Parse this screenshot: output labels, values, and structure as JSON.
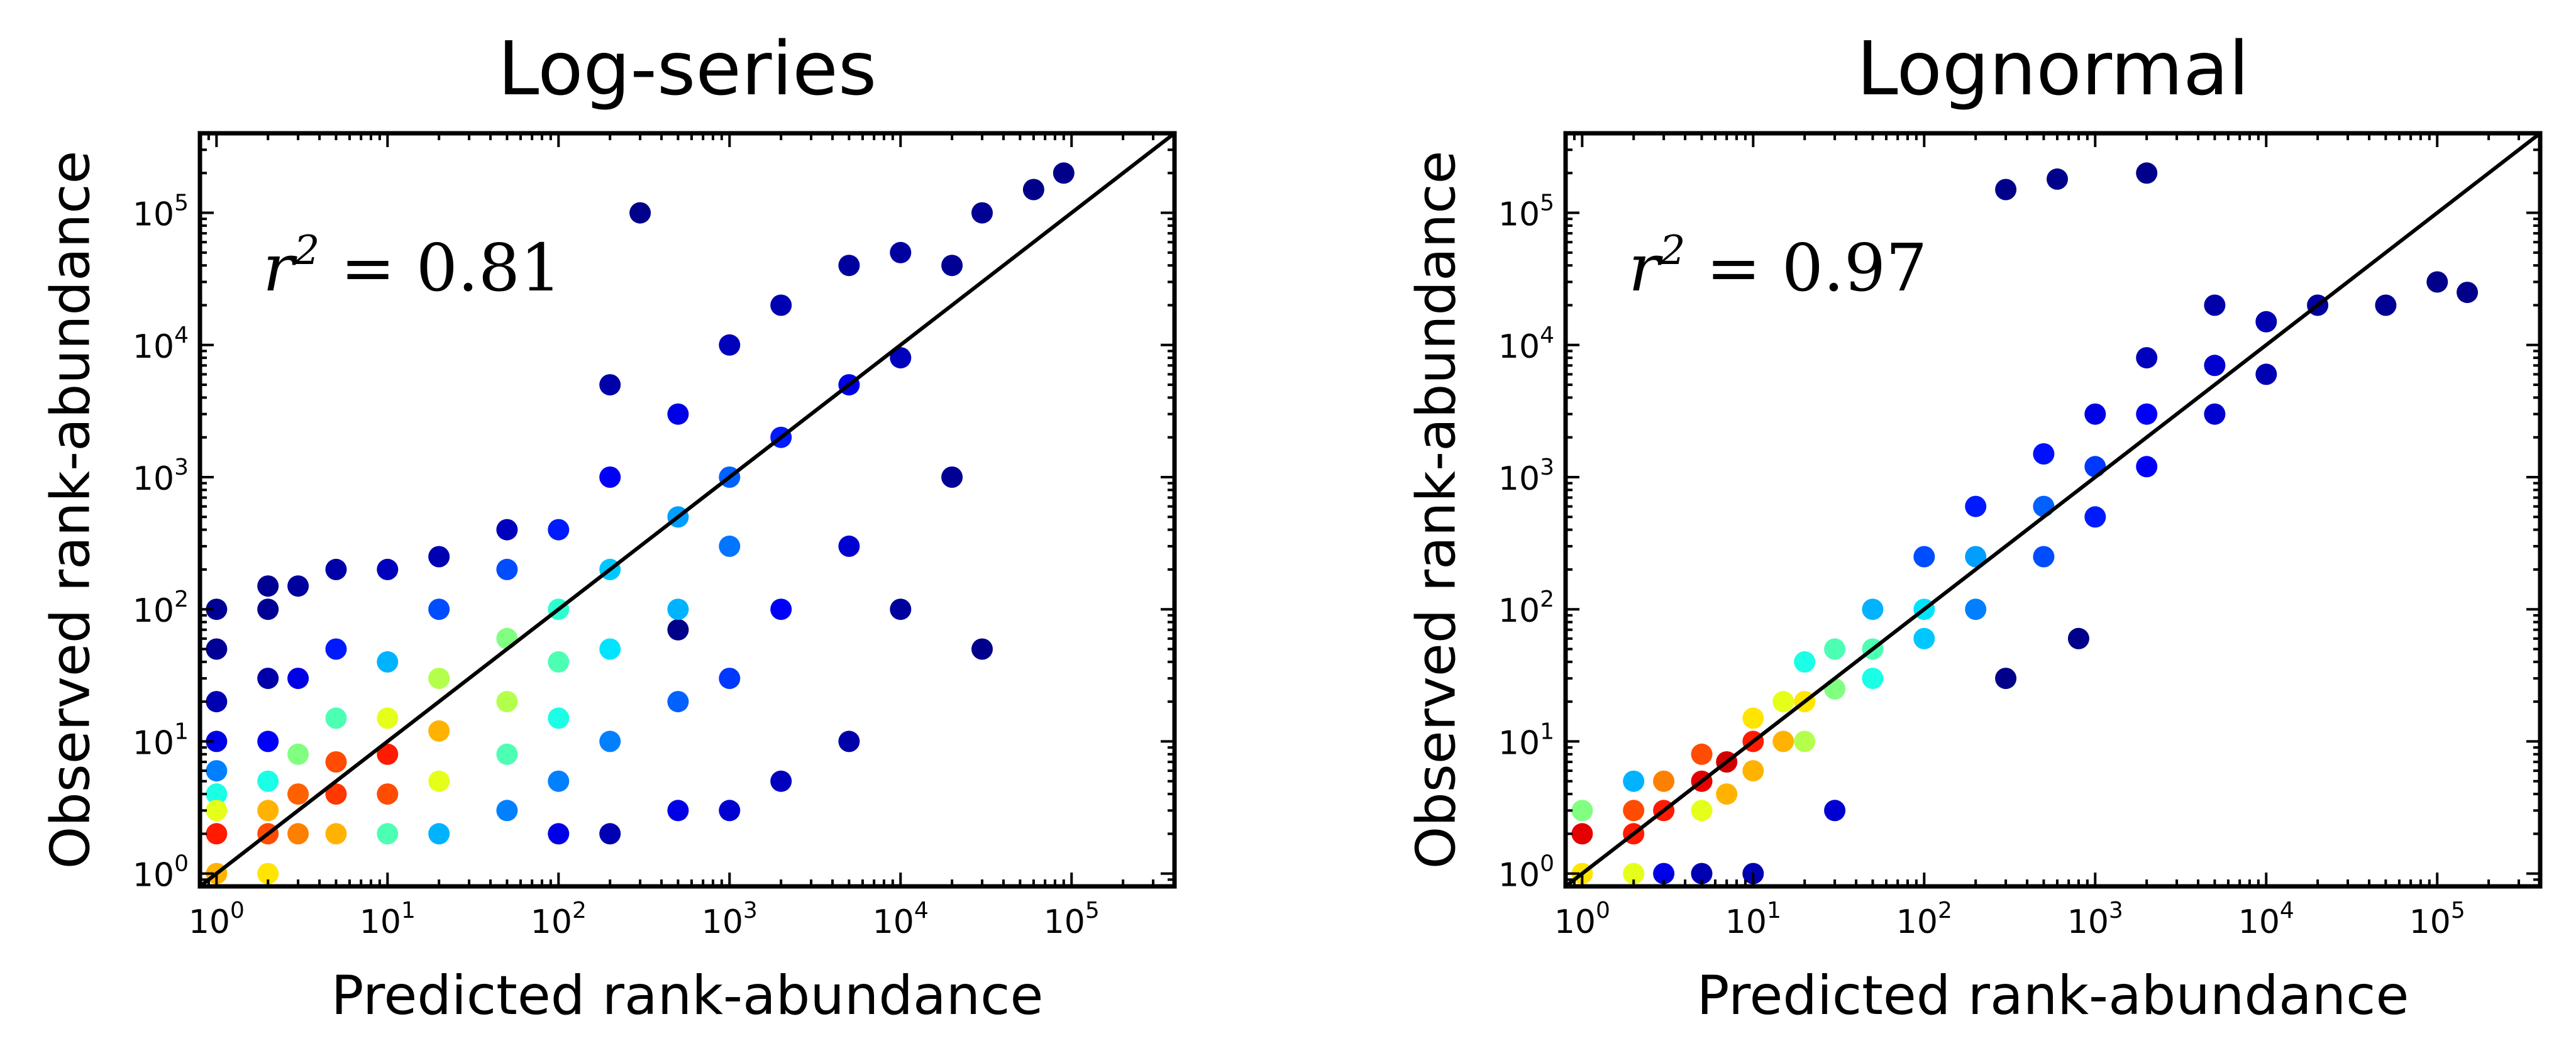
{
  "chart_data": [
    {
      "type": "scatter",
      "title": "Log-series",
      "xlabel": "Predicted rank-abundance",
      "ylabel": "Observed rank-abundance",
      "xscale": "log",
      "yscale": "log",
      "xlim": [
        0.8,
        400000
      ],
      "ylim": [
        0.8,
        400000
      ],
      "x_ticks": [
        {
          "base": "10",
          "exp": "0",
          "value": 1
        },
        {
          "base": "10",
          "exp": "1",
          "value": 10
        },
        {
          "base": "10",
          "exp": "2",
          "value": 100
        },
        {
          "base": "10",
          "exp": "3",
          "value": 1000
        },
        {
          "base": "10",
          "exp": "4",
          "value": 10000
        },
        {
          "base": "10",
          "exp": "5",
          "value": 100000
        }
      ],
      "y_ticks": [
        {
          "base": "10",
          "exp": "0",
          "value": 1
        },
        {
          "base": "10",
          "exp": "1",
          "value": 10
        },
        {
          "base": "10",
          "exp": "2",
          "value": 100
        },
        {
          "base": "10",
          "exp": "3",
          "value": 1000
        },
        {
          "base": "10",
          "exp": "4",
          "value": 10000
        },
        {
          "base": "10",
          "exp": "5",
          "value": 100000
        }
      ],
      "annotation": {
        "base": "r",
        "exp": "2",
        "rest": " = 0.81"
      },
      "reference_line": "1:1",
      "density_colormap": "jet",
      "points": [
        {
          "x": 1,
          "y": 1,
          "d": 0.7
        },
        {
          "x": 1,
          "y": 2,
          "d": 0.85
        },
        {
          "x": 1,
          "y": 3,
          "d": 0.6
        },
        {
          "x": 1,
          "y": 4,
          "d": 0.4
        },
        {
          "x": 1,
          "y": 6,
          "d": 0.25
        },
        {
          "x": 1,
          "y": 10,
          "d": 0.1
        },
        {
          "x": 1,
          "y": 20,
          "d": 0.05
        },
        {
          "x": 1,
          "y": 50,
          "d": 0.02
        },
        {
          "x": 1,
          "y": 100,
          "d": 0.02
        },
        {
          "x": 2,
          "y": 1,
          "d": 0.65
        },
        {
          "x": 2,
          "y": 2,
          "d": 0.8
        },
        {
          "x": 2,
          "y": 3,
          "d": 0.7
        },
        {
          "x": 2,
          "y": 5,
          "d": 0.4
        },
        {
          "x": 2,
          "y": 10,
          "d": 0.12
        },
        {
          "x": 2,
          "y": 30,
          "d": 0.04
        },
        {
          "x": 2,
          "y": 100,
          "d": 0.02
        },
        {
          "x": 2,
          "y": 150,
          "d": 0.02
        },
        {
          "x": 3,
          "y": 2,
          "d": 0.75
        },
        {
          "x": 3,
          "y": 4,
          "d": 0.78
        },
        {
          "x": 3,
          "y": 8,
          "d": 0.5
        },
        {
          "x": 3,
          "y": 30,
          "d": 0.1
        },
        {
          "x": 3,
          "y": 150,
          "d": 0.03
        },
        {
          "x": 5,
          "y": 2,
          "d": 0.7
        },
        {
          "x": 5,
          "y": 4,
          "d": 0.82
        },
        {
          "x": 5,
          "y": 7,
          "d": 0.8
        },
        {
          "x": 5,
          "y": 15,
          "d": 0.45
        },
        {
          "x": 5,
          "y": 50,
          "d": 0.15
        },
        {
          "x": 5,
          "y": 200,
          "d": 0.04
        },
        {
          "x": 10,
          "y": 2,
          "d": 0.45
        },
        {
          "x": 10,
          "y": 4,
          "d": 0.8
        },
        {
          "x": 10,
          "y": 8,
          "d": 0.85
        },
        {
          "x": 10,
          "y": 15,
          "d": 0.6
        },
        {
          "x": 10,
          "y": 40,
          "d": 0.3
        },
        {
          "x": 10,
          "y": 200,
          "d": 0.06
        },
        {
          "x": 20,
          "y": 2,
          "d": 0.3
        },
        {
          "x": 20,
          "y": 5,
          "d": 0.6
        },
        {
          "x": 20,
          "y": 12,
          "d": 0.7
        },
        {
          "x": 20,
          "y": 30,
          "d": 0.55
        },
        {
          "x": 20,
          "y": 100,
          "d": 0.2
        },
        {
          "x": 20,
          "y": 250,
          "d": 0.05
        },
        {
          "x": 50,
          "y": 3,
          "d": 0.25
        },
        {
          "x": 50,
          "y": 8,
          "d": 0.45
        },
        {
          "x": 50,
          "y": 20,
          "d": 0.55
        },
        {
          "x": 50,
          "y": 60,
          "d": 0.5
        },
        {
          "x": 50,
          "y": 200,
          "d": 0.2
        },
        {
          "x": 50,
          "y": 400,
          "d": 0.06
        },
        {
          "x": 100,
          "y": 2,
          "d": 0.1
        },
        {
          "x": 100,
          "y": 5,
          "d": 0.25
        },
        {
          "x": 100,
          "y": 15,
          "d": 0.4
        },
        {
          "x": 100,
          "y": 40,
          "d": 0.45
        },
        {
          "x": 100,
          "y": 100,
          "d": 0.42
        },
        {
          "x": 100,
          "y": 400,
          "d": 0.15
        },
        {
          "x": 200,
          "y": 2,
          "d": 0.05
        },
        {
          "x": 200,
          "y": 10,
          "d": 0.25
        },
        {
          "x": 200,
          "y": 50,
          "d": 0.35
        },
        {
          "x": 200,
          "y": 200,
          "d": 0.32
        },
        {
          "x": 200,
          "y": 1000,
          "d": 0.12
        },
        {
          "x": 200,
          "y": 5000,
          "d": 0.04
        },
        {
          "x": 500,
          "y": 3,
          "d": 0.1
        },
        {
          "x": 500,
          "y": 20,
          "d": 0.22
        },
        {
          "x": 500,
          "y": 100,
          "d": 0.3
        },
        {
          "x": 500,
          "y": 500,
          "d": 0.28
        },
        {
          "x": 500,
          "y": 3000,
          "d": 0.1
        },
        {
          "x": 1000,
          "y": 3,
          "d": 0.08
        },
        {
          "x": 1000,
          "y": 30,
          "d": 0.18
        },
        {
          "x": 1000,
          "y": 300,
          "d": 0.24
        },
        {
          "x": 1000,
          "y": 1000,
          "d": 0.22
        },
        {
          "x": 1000,
          "y": 10000,
          "d": 0.06
        },
        {
          "x": 2000,
          "y": 5,
          "d": 0.06
        },
        {
          "x": 2000,
          "y": 100,
          "d": 0.12
        },
        {
          "x": 2000,
          "y": 2000,
          "d": 0.15
        },
        {
          "x": 2000,
          "y": 20000,
          "d": 0.05
        },
        {
          "x": 5000,
          "y": 10,
          "d": 0.04
        },
        {
          "x": 5000,
          "y": 300,
          "d": 0.08
        },
        {
          "x": 5000,
          "y": 5000,
          "d": 0.1
        },
        {
          "x": 5000,
          "y": 40000,
          "d": 0.03
        },
        {
          "x": 10000,
          "y": 100,
          "d": 0.03
        },
        {
          "x": 10000,
          "y": 8000,
          "d": 0.06
        },
        {
          "x": 10000,
          "y": 50000,
          "d": 0.03
        },
        {
          "x": 20000,
          "y": 40000,
          "d": 0.02
        },
        {
          "x": 20000,
          "y": 1000,
          "d": 0.02
        },
        {
          "x": 30000,
          "y": 100000,
          "d": 0.02
        },
        {
          "x": 30000,
          "y": 50,
          "d": 0.01
        },
        {
          "x": 60000,
          "y": 150000,
          "d": 0.01
        },
        {
          "x": 90000,
          "y": 200000,
          "d": 0.01
        },
        {
          "x": 300,
          "y": 100000,
          "d": 0.01
        },
        {
          "x": 500,
          "y": 70,
          "d": 0.01
        }
      ]
    },
    {
      "type": "scatter",
      "title": "Lognormal",
      "xlabel": "Predicted rank-abundance",
      "ylabel": "Observed rank-abundance",
      "xscale": "log",
      "yscale": "log",
      "xlim": [
        0.8,
        400000
      ],
      "ylim": [
        0.8,
        400000
      ],
      "x_ticks": [
        {
          "base": "10",
          "exp": "0",
          "value": 1
        },
        {
          "base": "10",
          "exp": "1",
          "value": 10
        },
        {
          "base": "10",
          "exp": "2",
          "value": 100
        },
        {
          "base": "10",
          "exp": "3",
          "value": 1000
        },
        {
          "base": "10",
          "exp": "4",
          "value": 10000
        },
        {
          "base": "10",
          "exp": "5",
          "value": 100000
        }
      ],
      "y_ticks": [
        {
          "base": "10",
          "exp": "0",
          "value": 1
        },
        {
          "base": "10",
          "exp": "1",
          "value": 10
        },
        {
          "base": "10",
          "exp": "2",
          "value": 100
        },
        {
          "base": "10",
          "exp": "3",
          "value": 1000
        },
        {
          "base": "10",
          "exp": "4",
          "value": 10000
        },
        {
          "base": "10",
          "exp": "5",
          "value": 100000
        }
      ],
      "annotation": {
        "base": "r",
        "exp": "2",
        "rest": " = 0.97"
      },
      "reference_line": "1:1",
      "density_colormap": "jet",
      "points": [
        {
          "x": 1,
          "y": 1,
          "d": 0.65
        },
        {
          "x": 1,
          "y": 2,
          "d": 0.9
        },
        {
          "x": 1,
          "y": 3,
          "d": 0.5
        },
        {
          "x": 2,
          "y": 1,
          "d": 0.6
        },
        {
          "x": 2,
          "y": 2,
          "d": 0.85
        },
        {
          "x": 2,
          "y": 3,
          "d": 0.8
        },
        {
          "x": 2,
          "y": 5,
          "d": 0.3
        },
        {
          "x": 3,
          "y": 1,
          "d": 0.1
        },
        {
          "x": 3,
          "y": 3,
          "d": 0.85
        },
        {
          "x": 3,
          "y": 5,
          "d": 0.75
        },
        {
          "x": 5,
          "y": 1,
          "d": 0.05
        },
        {
          "x": 5,
          "y": 3,
          "d": 0.6
        },
        {
          "x": 5,
          "y": 5,
          "d": 0.9
        },
        {
          "x": 5,
          "y": 8,
          "d": 0.8
        },
        {
          "x": 7,
          "y": 4,
          "d": 0.7
        },
        {
          "x": 7,
          "y": 7,
          "d": 0.92
        },
        {
          "x": 10,
          "y": 1,
          "d": 0.05
        },
        {
          "x": 10,
          "y": 6,
          "d": 0.7
        },
        {
          "x": 10,
          "y": 10,
          "d": 0.85
        },
        {
          "x": 10,
          "y": 15,
          "d": 0.65
        },
        {
          "x": 15,
          "y": 10,
          "d": 0.7
        },
        {
          "x": 15,
          "y": 20,
          "d": 0.6
        },
        {
          "x": 20,
          "y": 10,
          "d": 0.55
        },
        {
          "x": 20,
          "y": 20,
          "d": 0.65
        },
        {
          "x": 20,
          "y": 40,
          "d": 0.4
        },
        {
          "x": 30,
          "y": 3,
          "d": 0.08
        },
        {
          "x": 30,
          "y": 25,
          "d": 0.5
        },
        {
          "x": 30,
          "y": 50,
          "d": 0.45
        },
        {
          "x": 50,
          "y": 30,
          "d": 0.4
        },
        {
          "x": 50,
          "y": 50,
          "d": 0.45
        },
        {
          "x": 50,
          "y": 100,
          "d": 0.3
        },
        {
          "x": 100,
          "y": 60,
          "d": 0.32
        },
        {
          "x": 100,
          "y": 100,
          "d": 0.35
        },
        {
          "x": 100,
          "y": 250,
          "d": 0.2
        },
        {
          "x": 200,
          "y": 100,
          "d": 0.25
        },
        {
          "x": 200,
          "y": 250,
          "d": 0.28
        },
        {
          "x": 200,
          "y": 600,
          "d": 0.15
        },
        {
          "x": 500,
          "y": 250,
          "d": 0.2
        },
        {
          "x": 500,
          "y": 600,
          "d": 0.22
        },
        {
          "x": 500,
          "y": 1500,
          "d": 0.14
        },
        {
          "x": 1000,
          "y": 500,
          "d": 0.15
        },
        {
          "x": 1000,
          "y": 1200,
          "d": 0.18
        },
        {
          "x": 1000,
          "y": 3000,
          "d": 0.1
        },
        {
          "x": 2000,
          "y": 1200,
          "d": 0.12
        },
        {
          "x": 2000,
          "y": 3000,
          "d": 0.12
        },
        {
          "x": 2000,
          "y": 8000,
          "d": 0.06
        },
        {
          "x": 5000,
          "y": 3000,
          "d": 0.08
        },
        {
          "x": 5000,
          "y": 7000,
          "d": 0.08
        },
        {
          "x": 5000,
          "y": 20000,
          "d": 0.04
        },
        {
          "x": 10000,
          "y": 6000,
          "d": 0.05
        },
        {
          "x": 10000,
          "y": 15000,
          "d": 0.05
        },
        {
          "x": 20000,
          "y": 20000,
          "d": 0.03
        },
        {
          "x": 50000,
          "y": 20000,
          "d": 0.02
        },
        {
          "x": 100000,
          "y": 30000,
          "d": 0.01
        },
        {
          "x": 150000,
          "y": 25000,
          "d": 0.01
        },
        {
          "x": 300,
          "y": 150000,
          "d": 0.01
        },
        {
          "x": 600,
          "y": 180000,
          "d": 0.01
        },
        {
          "x": 2000,
          "y": 200000,
          "d": 0.01
        },
        {
          "x": 800,
          "y": 60,
          "d": 0.01
        },
        {
          "x": 300,
          "y": 30,
          "d": 0.01
        }
      ]
    }
  ]
}
